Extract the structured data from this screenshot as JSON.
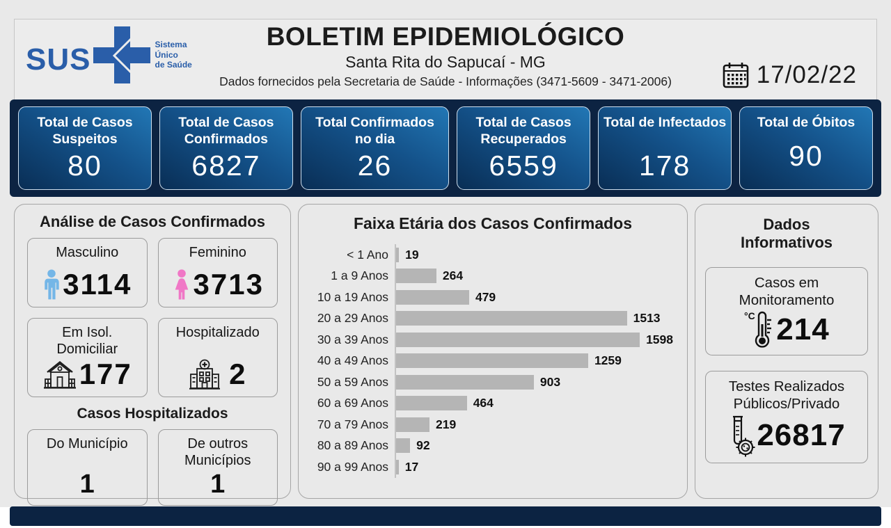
{
  "header": {
    "logo": {
      "sus": "SUS",
      "tagline_lines": [
        "Sistema",
        "Único",
        "de Saúde"
      ]
    },
    "title": "BOLETIM EPIDEMIOLÓGICO",
    "subtitle": "Santa Rita do Sapucaí - MG",
    "info": "Dados fornecidos pela Secretaria de Saúde - Informações (3471-5609 - 3471-2006)",
    "date": "17/02/22"
  },
  "stats": {
    "cards": [
      {
        "label": "Total de Casos Suspeitos",
        "value": "80"
      },
      {
        "label": "Total de Casos Confirmados",
        "value": "6827"
      },
      {
        "label": "Total Confirmados no dia",
        "value": "26"
      },
      {
        "label": "Total de Casos Recuperados",
        "value": "6559"
      },
      {
        "label": "Total de Infectados",
        "value": "178"
      },
      {
        "label": "Total de Óbitos",
        "value": "90"
      }
    ]
  },
  "analysis": {
    "title": "Análise de Casos Confirmados",
    "cards": [
      {
        "label": "Masculino",
        "value": "3114",
        "icon": "male-icon"
      },
      {
        "label": "Feminino",
        "value": "3713",
        "icon": "female-icon"
      },
      {
        "label": "Em Isol. Domiciliar",
        "value": "177",
        "icon": "house-icon"
      },
      {
        "label": "Hospitalizado",
        "value": "2",
        "icon": "hospital-icon"
      }
    ],
    "subtitle": "Casos Hospitalizados",
    "sub_cards": [
      {
        "label": "Do Município",
        "value": "1"
      },
      {
        "label": "De outros Municípios",
        "value": "1"
      }
    ]
  },
  "chart_data": {
    "type": "bar",
    "orientation": "horizontal",
    "title": "Faixa Etária dos Casos Confirmados",
    "categories": [
      "< 1 Ano",
      "1 a 9 Anos",
      "10 a 19 Anos",
      "20 a 29 Anos",
      "30 a 39 Anos",
      "40 a 49 Anos",
      "50 a 59 Anos",
      "60 a 69 Anos",
      "70 a 79 Anos",
      "80 a 89 Anos",
      "90 a 99 Anos"
    ],
    "values": [
      19,
      264,
      479,
      1513,
      1598,
      1259,
      903,
      464,
      219,
      92,
      17
    ],
    "xlabel": "",
    "ylabel": "",
    "xlim": [
      0,
      1650
    ],
    "grid": false,
    "value_labels": true,
    "legend": "none",
    "bar_color": "#b5b5b5"
  },
  "info_panel": {
    "title_lines": [
      "Dados",
      "Informativos"
    ],
    "cards": [
      {
        "label": "Casos em Monitoramento",
        "value": "214",
        "icon": "thermometer-icon"
      },
      {
        "label": "Testes Realizados Públicos/Privado",
        "value": "26817",
        "icon": "test-tube-icon"
      }
    ]
  },
  "colors": {
    "navy": "#0c2342",
    "card_grad_start": "#092e55",
    "card_grad_mid": "#14528a",
    "card_grad_end": "#2277b5",
    "bar": "#b5b5b5",
    "sus_blue": "#2a5ea9",
    "male": "#74b6e7",
    "female": "#f077c6",
    "page_bg": "#e9e9e9"
  }
}
